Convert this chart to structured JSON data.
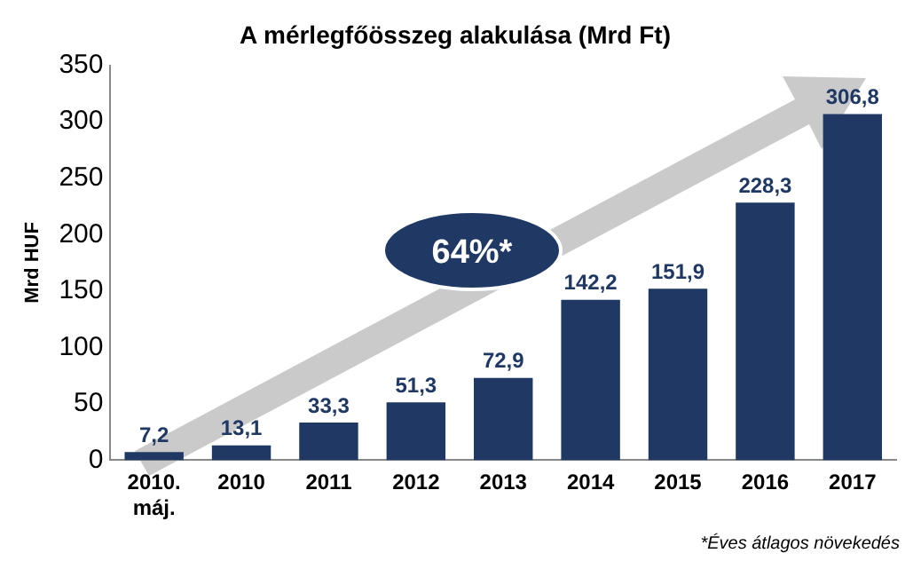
{
  "chart_data": {
    "type": "bar",
    "title": "A mérlegfőösszeg alakulása (Mrd Ft)",
    "ylabel": "Mrd HUF",
    "categories": [
      "2010. máj.",
      "2010",
      "2011",
      "2012",
      "2013",
      "2014",
      "2015",
      "2016",
      "2017"
    ],
    "values": [
      7.2,
      13.1,
      33.3,
      51.3,
      72.9,
      142.2,
      151.9,
      228.3,
      306.8
    ],
    "value_labels": [
      "7,2",
      "13,1",
      "33,3",
      "51,3",
      "72,9",
      "142,2",
      "151,9",
      "228,3",
      "306,8"
    ],
    "color": "#1f3864",
    "ylim": [
      0,
      350
    ],
    "yticks": [
      0,
      50,
      100,
      150,
      200,
      250,
      300,
      350
    ],
    "grid": false,
    "legend": false,
    "annotations": [
      "64%*",
      "*Éves átlagos növekedés"
    ]
  }
}
